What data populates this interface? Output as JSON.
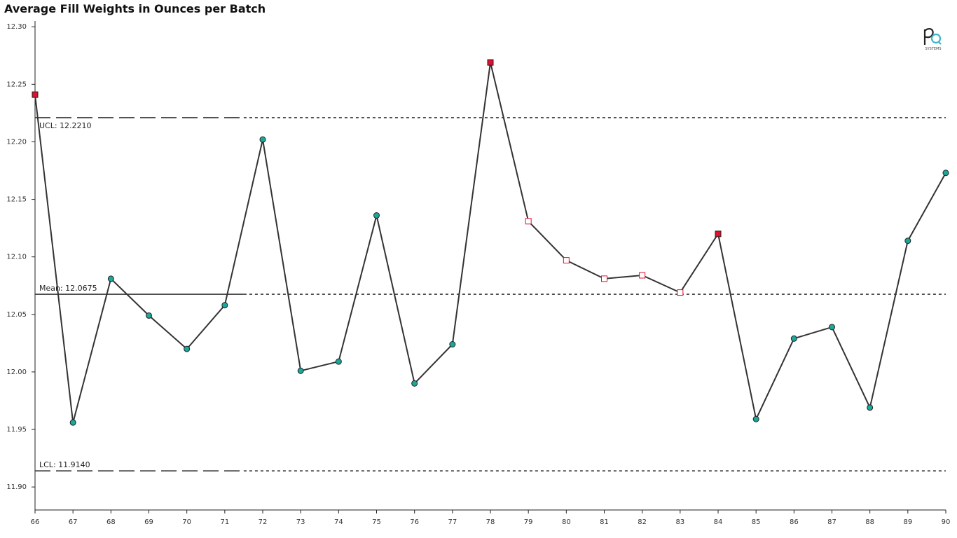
{
  "chart_data": {
    "type": "line",
    "title": "Average Fill Weights in Ounces per Batch",
    "xlabel": "",
    "ylabel": "",
    "x": [
      66,
      67,
      68,
      69,
      70,
      71,
      72,
      73,
      74,
      75,
      76,
      77,
      78,
      79,
      80,
      81,
      82,
      83,
      84,
      85,
      86,
      87,
      88,
      89,
      90
    ],
    "values": [
      12.241,
      11.956,
      12.081,
      12.049,
      12.02,
      12.058,
      12.202,
      12.001,
      12.009,
      12.136,
      11.99,
      12.024,
      12.269,
      12.131,
      12.097,
      12.081,
      12.084,
      12.069,
      12.12,
      11.959,
      12.029,
      12.039,
      11.969,
      12.114,
      12.173
    ],
    "point_markers": [
      "out-of-control",
      "normal",
      "normal",
      "normal",
      "normal",
      "normal",
      "normal",
      "normal",
      "normal",
      "normal",
      "normal",
      "normal",
      "out-of-control",
      "rule-violation",
      "rule-violation",
      "rule-violation",
      "rule-violation",
      "rule-violation",
      "out-of-control",
      "normal",
      "normal",
      "normal",
      "normal",
      "normal",
      "normal"
    ],
    "ylim": [
      11.88,
      12.305
    ],
    "xlim": [
      66,
      90
    ],
    "y_ticks": [
      "11.90",
      "11.95",
      "12.00",
      "12.05",
      "12.10",
      "12.15",
      "12.20",
      "12.25",
      "12.30"
    ],
    "x_ticks": [
      "66",
      "67",
      "68",
      "69",
      "70",
      "71",
      "72",
      "73",
      "74",
      "75",
      "76",
      "77",
      "78",
      "79",
      "80",
      "81",
      "82",
      "83",
      "84",
      "85",
      "86",
      "87",
      "88",
      "89",
      "90"
    ],
    "control_limits": {
      "ucl": {
        "value": 12.221,
        "label": "UCL: 12.2210"
      },
      "mean": {
        "value": 12.0675,
        "label": "Mean: 12.0675"
      },
      "lcl": {
        "value": 11.914,
        "label": "LCL: 11.9140"
      }
    },
    "grid": false,
    "legend": "none"
  },
  "colors": {
    "line": "#333333",
    "normal_marker": "#1aa89a",
    "out_of_control_marker": "#e0102e",
    "rule_violation_marker": "#ffffff",
    "rule_violation_stroke": "#e0102e",
    "logo_dark": "#222222",
    "logo_accent": "#3ab5c6"
  },
  "logo": {
    "text": "SYSTEMS"
  }
}
